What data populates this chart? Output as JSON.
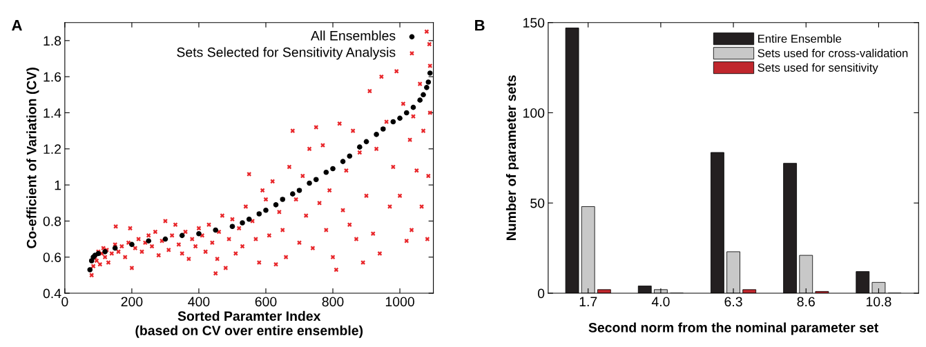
{
  "chart_data": [
    {
      "type": "scatter",
      "title": "A",
      "xlabel": "Sorted Paramter Index\n(based on CV over entire ensemble)",
      "ylabel": "Co-efficient of Variation (CV)",
      "xlim": [
        0,
        1100
      ],
      "ylim": [
        0.4,
        1.9
      ],
      "xticks": [
        0,
        200,
        400,
        600,
        800,
        1000
      ],
      "yticks": [
        0.4,
        0.6,
        0.8,
        1,
        1.2,
        1.4,
        1.6,
        1.8
      ],
      "legend": "top right",
      "grid": false,
      "series": [
        {
          "name": "All Ensembles",
          "color": "#000000",
          "marker": "circle",
          "x": [
            75,
            80,
            85,
            90,
            100,
            120,
            150,
            200,
            250,
            300,
            350,
            400,
            450,
            500,
            530,
            550,
            580,
            600,
            630,
            650,
            680,
            700,
            730,
            750,
            780,
            800,
            830,
            850,
            880,
            900,
            930,
            950,
            980,
            1000,
            1020,
            1040,
            1060,
            1070,
            1080,
            1085,
            1090
          ],
          "values": [
            0.53,
            0.58,
            0.6,
            0.61,
            0.62,
            0.63,
            0.65,
            0.67,
            0.69,
            0.7,
            0.72,
            0.73,
            0.75,
            0.77,
            0.79,
            0.81,
            0.84,
            0.86,
            0.89,
            0.92,
            0.95,
            0.97,
            1.01,
            1.03,
            1.07,
            1.09,
            1.13,
            1.16,
            1.21,
            1.24,
            1.28,
            1.31,
            1.35,
            1.37,
            1.4,
            1.43,
            1.47,
            1.5,
            1.54,
            1.57,
            1.62
          ]
        },
        {
          "name": "Sets Selected for Sensitivity Analysis",
          "color": "#e8262a",
          "marker": "cross",
          "x": [
            80,
            85,
            90,
            95,
            100,
            105,
            110,
            115,
            120,
            125,
            130,
            140,
            150,
            152,
            160,
            170,
            180,
            190,
            195,
            200,
            210,
            220,
            230,
            240,
            250,
            260,
            270,
            280,
            290,
            300,
            310,
            320,
            330,
            340,
            350,
            360,
            370,
            380,
            390,
            400,
            410,
            420,
            430,
            440,
            450,
            455,
            460,
            470,
            480,
            490,
            500,
            510,
            520,
            530,
            540,
            550,
            560,
            570,
            580,
            590,
            600,
            610,
            620,
            630,
            640,
            650,
            660,
            670,
            680,
            690,
            700,
            710,
            720,
            730,
            740,
            750,
            760,
            770,
            780,
            790,
            800,
            810,
            820,
            830,
            840,
            850,
            860,
            870,
            880,
            890,
            900,
            910,
            920,
            930,
            940,
            945,
            960,
            970,
            980,
            990,
            1000,
            1010,
            1020,
            1030,
            1035,
            1040,
            1050,
            1060,
            1065,
            1070,
            1080,
            1082,
            1085,
            1088,
            1090,
            1090
          ],
          "values": [
            0.5,
            0.55,
            0.6,
            0.58,
            0.63,
            0.56,
            0.62,
            0.65,
            0.6,
            0.64,
            0.57,
            0.62,
            0.67,
            0.77,
            0.63,
            0.66,
            0.6,
            0.68,
            0.76,
            0.54,
            0.65,
            0.7,
            0.63,
            0.68,
            0.72,
            0.66,
            0.74,
            0.61,
            0.69,
            0.8,
            0.64,
            0.72,
            0.78,
            0.67,
            0.62,
            0.74,
            0.59,
            0.7,
            0.66,
            0.76,
            0.72,
            0.63,
            0.78,
            0.68,
            0.51,
            0.59,
            0.74,
            0.83,
            0.54,
            0.7,
            0.81,
            0.62,
            0.76,
            0.66,
            0.88,
            1.06,
            0.8,
            0.7,
            0.57,
            0.97,
            0.92,
            0.72,
            1.02,
            0.56,
            0.85,
            0.75,
            0.6,
            1.1,
            1.3,
            0.92,
            0.68,
            1.05,
            0.83,
            1.2,
            0.65,
            1.32,
            0.9,
            1.22,
            0.75,
            0.97,
            0.6,
            0.53,
            1.34,
            0.86,
            1.08,
            0.78,
            1.3,
            0.7,
            1.18,
            0.57,
            0.94,
            1.52,
            0.73,
            1.2,
            0.62,
            1.6,
            1.35,
            0.88,
            1.1,
            1.63,
            0.94,
            1.45,
            0.69,
            1.25,
            0.75,
            1.38,
            1.08,
            1.56,
            0.88,
            1.3,
            1.85,
            0.7,
            1.05,
            1.78,
            1.4,
            1.66
          ]
        }
      ]
    },
    {
      "type": "bar",
      "title": "B",
      "xlabel": "Second norm from the nominal parameter set",
      "ylabel": "Number of parameter sets",
      "categories": [
        "1.7",
        "4.0",
        "6.3",
        "8.6",
        "10.8"
      ],
      "ylim": [
        0,
        150
      ],
      "yticks": [
        0,
        50,
        100,
        150
      ],
      "legend": "top right",
      "grid": false,
      "series": [
        {
          "name": "Entire Ensemble",
          "color": "#231f20",
          "values": [
            147,
            4,
            78,
            72,
            12
          ]
        },
        {
          "name": "Sets used for cross-validation",
          "color": "#c8c8c8",
          "values": [
            48,
            2,
            23,
            21,
            6
          ]
        },
        {
          "name": "Sets used for sensitivity",
          "color": "#c0272d",
          "values": [
            2,
            0,
            2,
            1,
            0
          ]
        }
      ]
    }
  ]
}
